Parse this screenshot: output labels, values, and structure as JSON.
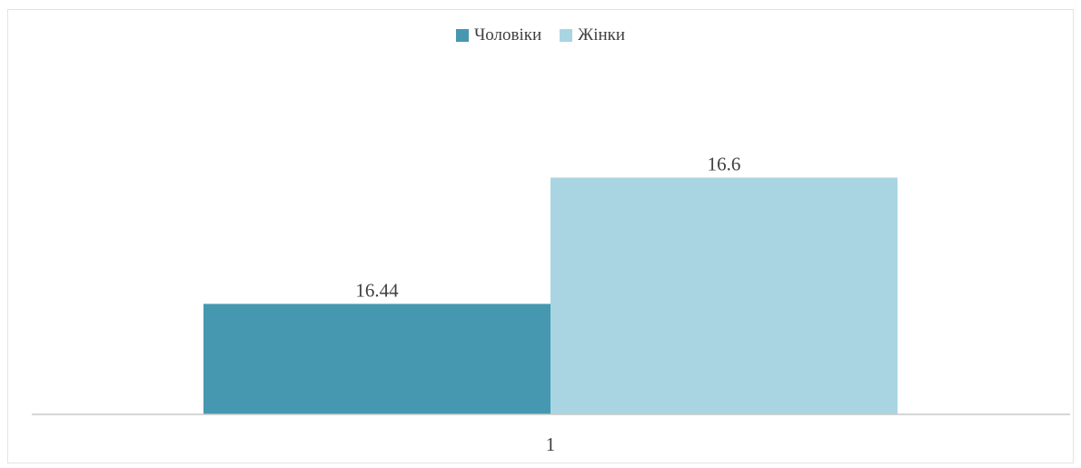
{
  "chart_data": {
    "type": "bar",
    "categories": [
      "1"
    ],
    "series": [
      {
        "name": "Чоловіки",
        "values": [
          16.44
        ],
        "color": "#4598b0"
      },
      {
        "name": "Жінки",
        "values": [
          16.6
        ],
        "color": "#a9d5e2"
      }
    ],
    "data_labels": [
      "16.44",
      "16.6"
    ],
    "legend_position": "top",
    "grid": false,
    "ylim": [
      16.3,
      16.65
    ]
  }
}
